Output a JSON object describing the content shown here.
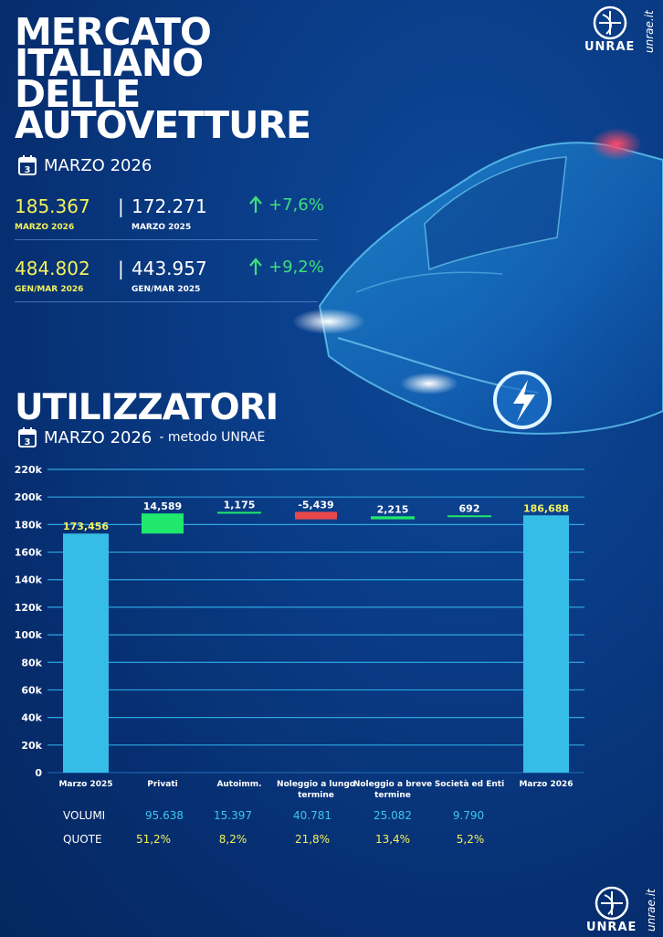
{
  "headline": {
    "lines": [
      "MERCATO",
      "ITALIANO",
      "DELLE",
      "AUTOVETTURE"
    ],
    "date": "MARZO 2026",
    "calendar_digit": "3"
  },
  "stats": {
    "row1": {
      "current": "185.367",
      "current_label": "MARZO 2026",
      "previous": "172.271",
      "previous_label": "MARZO 2025",
      "change": "+7,6%"
    },
    "row2": {
      "current": "484.802",
      "current_label": "GEN/MAR 2026",
      "previous": "443.957",
      "previous_label": "GEN/MAR 2025",
      "change": "+9,2%"
    },
    "separator": "|"
  },
  "section": {
    "title": "UTILIZZATORI",
    "date": "MARZO 2026",
    "date_suffix": "- metodo UNRAE",
    "calendar_digit": "3"
  },
  "brand": {
    "logo_text": "UNRAE",
    "site": "unrae.it"
  },
  "colors": {
    "total_bar": "#35bde8",
    "increase": "#1fe86c",
    "decrease": "#e8484c",
    "gridline": "#2ea6e0",
    "accent_yellow": "#f3f15a",
    "accent_green": "#3ee07a"
  },
  "chart_data": {
    "type": "bar",
    "subtype": "waterfall",
    "categories": [
      "Marzo 2025",
      "Privati",
      "Autoimm.",
      "Noleggio a lungo termine",
      "Noleggio a breve termine",
      "Società ed Enti",
      "Marzo 2026"
    ],
    "category_lines": [
      [
        "Marzo 2025"
      ],
      [
        "Privati"
      ],
      [
        "Autoimm."
      ],
      [
        "Noleggio a lungo",
        "termine"
      ],
      [
        "Noleggio a breve",
        "termine"
      ],
      [
        "Società ed Enti"
      ],
      [
        "Marzo 2026"
      ]
    ],
    "values": [
      173456,
      14589,
      1175,
      -5439,
      2215,
      692,
      186688
    ],
    "value_labels": [
      "173,456",
      "14,589",
      "1,175",
      "-5,439",
      "2,215",
      "692",
      "186,688"
    ],
    "bar_kinds": [
      "total",
      "delta",
      "delta",
      "delta",
      "delta",
      "delta",
      "total"
    ],
    "yticks": [
      0,
      20000,
      40000,
      60000,
      80000,
      100000,
      120000,
      140000,
      160000,
      180000,
      200000,
      220000
    ],
    "ytick_labels": [
      "0",
      "20k",
      "40k",
      "60k",
      "80k",
      "100k",
      "120k",
      "140k",
      "160k",
      "180k",
      "200k",
      "220k"
    ],
    "ylim": [
      0,
      220000
    ],
    "grid": true,
    "legend": "none"
  },
  "table": {
    "volumi_label": "VOLUMI",
    "quote_label": "QUOTE",
    "volumi": [
      "95.638",
      "15.397",
      "40.781",
      "25.082",
      "9.790"
    ],
    "quote": [
      "51,2%",
      "8,2%",
      "21,8%",
      "13,4%",
      "5,2%"
    ]
  }
}
